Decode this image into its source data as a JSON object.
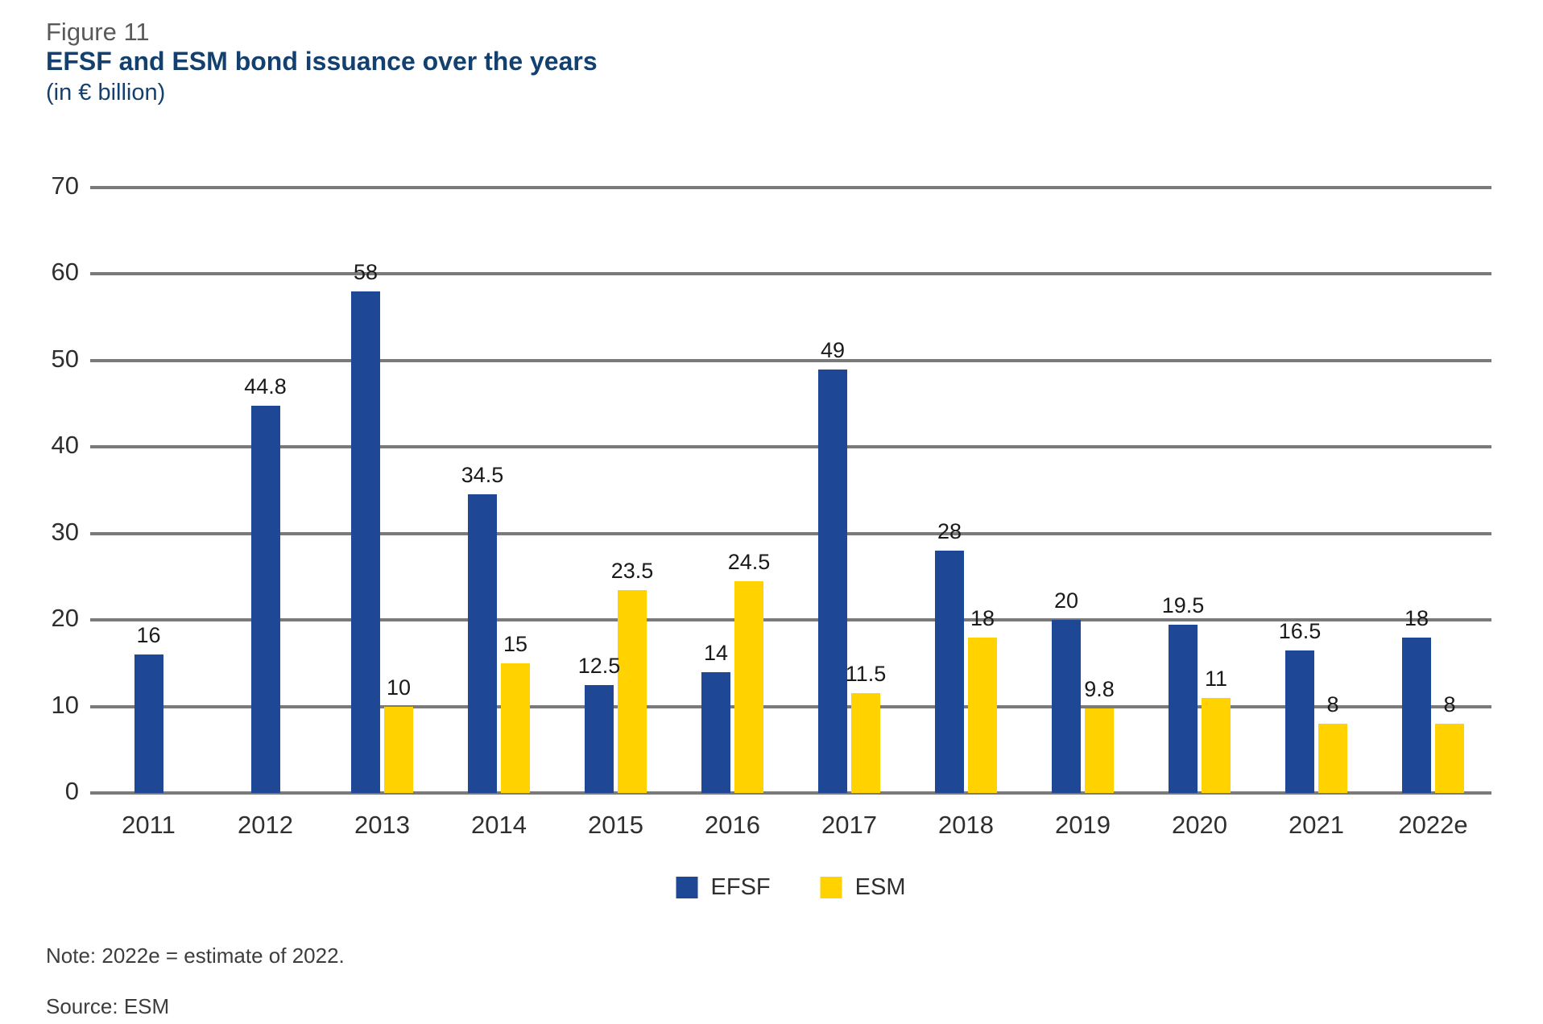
{
  "header": {
    "figure_label": "Figure 11",
    "title": "EFSF and ESM bond issuance over the years",
    "subtitle": "(in € billion)"
  },
  "chart_data": {
    "type": "bar",
    "title": "EFSF and ESM bond issuance over the years",
    "unit_label": "(in € billion)",
    "categories": [
      "2011",
      "2012",
      "2013",
      "2014",
      "2015",
      "2016",
      "2017",
      "2018",
      "2019",
      "2020",
      "2021",
      "2022e"
    ],
    "series": [
      {
        "name": "EFSF",
        "color": "#1E4796",
        "values": [
          16,
          44.8,
          58,
          34.5,
          12.5,
          14,
          49,
          28,
          20,
          19.5,
          16.5,
          18
        ]
      },
      {
        "name": "ESM",
        "color": "#FFD200",
        "values": [
          null,
          null,
          10,
          15,
          23.5,
          24.5,
          11.5,
          18,
          9.8,
          11,
          8,
          8
        ]
      }
    ],
    "ylim": [
      0,
      70
    ],
    "ytick_step": 10,
    "yticks": [
      0,
      10,
      20,
      30,
      40,
      50,
      60,
      70
    ],
    "grid": true,
    "gridline_color": "#7a7a7a",
    "legend_position": "bottom",
    "data_labels": true
  },
  "legend": {
    "items": [
      {
        "label": "EFSF",
        "color": "#1E4796"
      },
      {
        "label": "ESM",
        "color": "#FFD200"
      }
    ]
  },
  "footnotes": {
    "note": "Note: 2022e = estimate of 2022.",
    "source": "Source: ESM"
  }
}
